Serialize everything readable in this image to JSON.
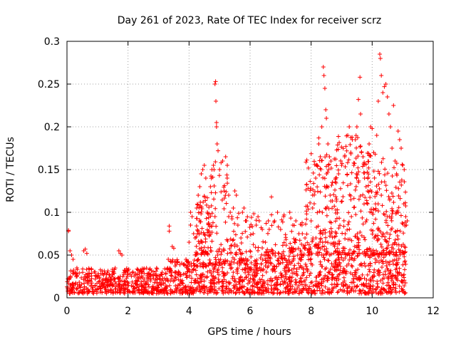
{
  "chart_data": {
    "type": "scatter",
    "title": "Day 261 of 2023, Rate Of TEC Index for receiver scrz",
    "xlabel": "GPS time / hours",
    "ylabel": "ROTI / TECUs",
    "xlim": [
      0,
      12
    ],
    "ylim": [
      0,
      0.3
    ],
    "xticks": [
      0,
      2,
      4,
      6,
      8,
      10,
      12
    ],
    "yticks": [
      0,
      0.05,
      0.1,
      0.15,
      0.2,
      0.25,
      0.3
    ],
    "xtick_labels": [
      "0",
      "2",
      "4",
      "6",
      "8",
      "10",
      "12"
    ],
    "ytick_labels": [
      "0",
      "0.05",
      "0.1",
      "0.15",
      "0.2",
      "0.25",
      "0.3"
    ],
    "grid": true,
    "marker": "+",
    "marker_color": "#ff0000",
    "series": [
      {
        "name": "ROTI",
        "points": [
          [
            0.05,
            0.078
          ],
          [
            0.05,
            0.079
          ],
          [
            0.1,
            0.055
          ],
          [
            0.15,
            0.05
          ],
          [
            0.2,
            0.045
          ],
          [
            0.55,
            0.055
          ],
          [
            0.6,
            0.057
          ],
          [
            0.65,
            0.052
          ],
          [
            1.7,
            0.055
          ],
          [
            1.75,
            0.052
          ],
          [
            1.8,
            0.05
          ],
          [
            3.35,
            0.084
          ],
          [
            3.35,
            0.078
          ],
          [
            3.45,
            0.06
          ],
          [
            3.5,
            0.058
          ],
          [
            3.9,
            0.045
          ],
          [
            4.0,
            0.065
          ],
          [
            4.05,
            0.1
          ],
          [
            4.05,
            0.085
          ],
          [
            4.1,
            0.095
          ],
          [
            4.15,
            0.075
          ],
          [
            4.2,
            0.07
          ],
          [
            4.25,
            0.105
          ],
          [
            4.3,
            0.12
          ],
          [
            4.35,
            0.13
          ],
          [
            4.4,
            0.145
          ],
          [
            4.45,
            0.15
          ],
          [
            4.5,
            0.155
          ],
          [
            4.55,
            0.14
          ],
          [
            4.6,
            0.117
          ],
          [
            4.6,
            0.1
          ],
          [
            4.65,
            0.098
          ],
          [
            4.7,
            0.13
          ],
          [
            4.75,
            0.15
          ],
          [
            4.8,
            0.155
          ],
          [
            4.85,
            0.095
          ],
          [
            4.85,
            0.25
          ],
          [
            4.87,
            0.253
          ],
          [
            4.88,
            0.23
          ],
          [
            4.9,
            0.2
          ],
          [
            4.9,
            0.205
          ],
          [
            4.92,
            0.18
          ],
          [
            4.95,
            0.172
          ],
          [
            5.0,
            0.15
          ],
          [
            5.05,
            0.158
          ],
          [
            5.1,
            0.16
          ],
          [
            5.15,
            0.125
          ],
          [
            5.2,
            0.165
          ],
          [
            5.25,
            0.14
          ],
          [
            5.3,
            0.12
          ],
          [
            5.35,
            0.1
          ],
          [
            5.4,
            0.095
          ],
          [
            5.45,
            0.105
          ],
          [
            5.5,
            0.125
          ],
          [
            5.55,
            0.12
          ],
          [
            5.6,
            0.085
          ],
          [
            5.7,
            0.07
          ],
          [
            5.75,
            0.1
          ],
          [
            5.8,
            0.105
          ],
          [
            5.85,
            0.09
          ],
          [
            6.0,
            0.055
          ],
          [
            6.1,
            0.075
          ],
          [
            6.2,
            0.085
          ],
          [
            6.3,
            0.09
          ],
          [
            6.4,
            0.08
          ],
          [
            6.5,
            0.065
          ],
          [
            6.6,
            0.09
          ],
          [
            6.7,
            0.118
          ],
          [
            6.8,
            0.09
          ],
          [
            6.9,
            0.1
          ],
          [
            7.0,
            0.08
          ],
          [
            7.1,
            0.095
          ],
          [
            7.3,
            0.1
          ],
          [
            7.4,
            0.085
          ],
          [
            7.5,
            0.09
          ],
          [
            7.6,
            0.075
          ],
          [
            7.7,
            0.085
          ],
          [
            7.8,
            0.07
          ],
          [
            7.85,
            0.092
          ],
          [
            7.9,
            0.128
          ],
          [
            8.0,
            0.09
          ],
          [
            8.05,
            0.105
          ],
          [
            8.1,
            0.11
          ],
          [
            8.15,
            0.14
          ],
          [
            8.2,
            0.155
          ],
          [
            8.25,
            0.18
          ],
          [
            8.25,
            0.187
          ],
          [
            8.3,
            0.165
          ],
          [
            8.35,
            0.2
          ],
          [
            8.4,
            0.27
          ],
          [
            8.42,
            0.26
          ],
          [
            8.45,
            0.245
          ],
          [
            8.48,
            0.22
          ],
          [
            8.5,
            0.21
          ],
          [
            8.55,
            0.18
          ],
          [
            8.6,
            0.165
          ],
          [
            8.65,
            0.16
          ],
          [
            8.7,
            0.135
          ],
          [
            8.8,
            0.14
          ],
          [
            8.9,
            0.145
          ],
          [
            9.0,
            0.155
          ],
          [
            9.1,
            0.165
          ],
          [
            9.2,
            0.19
          ],
          [
            9.25,
            0.2
          ],
          [
            9.3,
            0.17
          ],
          [
            9.35,
            0.185
          ],
          [
            9.4,
            0.155
          ],
          [
            9.45,
            0.185
          ],
          [
            9.5,
            0.2
          ],
          [
            9.55,
            0.232
          ],
          [
            9.6,
            0.258
          ],
          [
            9.62,
            0.215
          ],
          [
            9.65,
            0.17
          ],
          [
            9.7,
            0.165
          ],
          [
            9.75,
            0.14
          ],
          [
            9.8,
            0.13
          ],
          [
            9.85,
            0.11
          ],
          [
            9.9,
            0.18
          ],
          [
            9.95,
            0.2
          ],
          [
            10.0,
            0.198
          ],
          [
            10.05,
            0.17
          ],
          [
            10.1,
            0.168
          ],
          [
            10.15,
            0.19
          ],
          [
            10.2,
            0.23
          ],
          [
            10.25,
            0.285
          ],
          [
            10.27,
            0.28
          ],
          [
            10.3,
            0.26
          ],
          [
            10.35,
            0.24
          ],
          [
            10.4,
            0.247
          ],
          [
            10.45,
            0.25
          ],
          [
            10.5,
            0.235
          ],
          [
            10.55,
            0.215
          ],
          [
            10.6,
            0.2
          ],
          [
            10.65,
            0.175
          ],
          [
            10.7,
            0.225
          ],
          [
            10.75,
            0.16
          ],
          [
            10.8,
            0.145
          ],
          [
            10.85,
            0.195
          ],
          [
            10.9,
            0.185
          ],
          [
            10.95,
            0.175
          ],
          [
            11.0,
            0.155
          ],
          [
            11.05,
            0.15
          ],
          [
            11.1,
            0.095
          ],
          [
            11.12,
            0.085
          ],
          [
            11.15,
            0.09
          ]
        ]
      }
    ],
    "background_band": {
      "x_range": [
        0,
        11.1
      ],
      "y_range": [
        0.005,
        0.06
      ]
    }
  }
}
